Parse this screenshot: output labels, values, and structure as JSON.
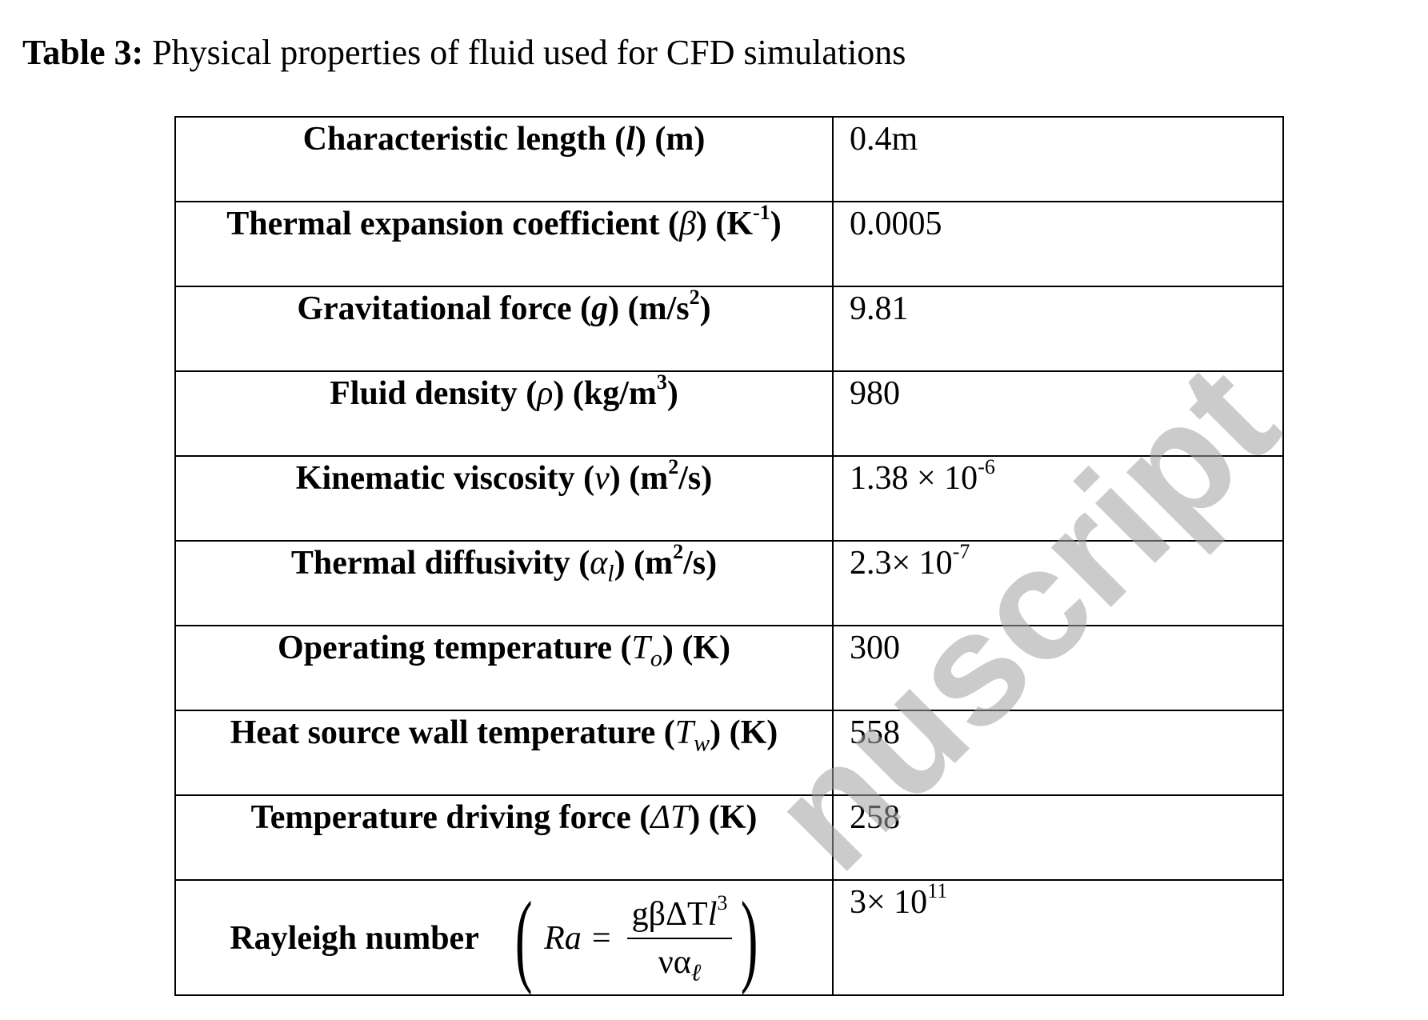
{
  "caption": {
    "label": "Table 3:",
    "text": " Physical properties of fluid used for CFD simulations"
  },
  "rows": [
    {
      "name": "Characteristic length (",
      "symbol": "l",
      "unit": ") (m)",
      "value": "0.4m"
    },
    {
      "name": "Thermal expansion coefficient (",
      "symbol": "β",
      "unit": ") (K",
      "unit_sup": "-1",
      "unit_end": ")",
      "value": "0.0005"
    },
    {
      "name": "Gravitational force (",
      "symbol": "g",
      "unit": ") (m/s",
      "unit_sup": "2",
      "unit_end": ")",
      "value": "9.81"
    },
    {
      "name": "Fluid density (",
      "symbol": "ρ",
      "unit": ") (kg/m",
      "unit_sup": "3",
      "unit_end": ")",
      "value": "980"
    },
    {
      "name": "Kinematic viscosity (",
      "symbol": "ν",
      "unit": ") (m",
      "unit_sup": "2",
      "unit_end": "/s)",
      "value_base": "1.38 × 10",
      "value_sup": "-6"
    },
    {
      "name": "Thermal diffusivity (",
      "symbol": "α",
      "symbol_sub": "l",
      "unit": ") (m",
      "unit_sup": "2",
      "unit_end": "/s)",
      "value_base": "2.3× 10",
      "value_sup": "-7"
    },
    {
      "name": "Operating temperature (",
      "symbol": "T",
      "symbol_sub": "o",
      "unit": ") (K)",
      "value": "300"
    },
    {
      "name": "Heat source wall temperature (",
      "symbol": "T",
      "symbol_sub": "w",
      "unit": ") (K)",
      "value": "558"
    },
    {
      "name": "Temperature driving force (",
      "symbol": "ΔT",
      "unit": ") (K)",
      "value": "258"
    }
  ],
  "rayleigh": {
    "label": "Rayleigh number",
    "ra": "Ra =",
    "numerator": "gβΔT",
    "numerator_var": "l",
    "numerator_sup": "3",
    "denominator": "να",
    "denominator_sub": "ℓ",
    "value_base": "3× 10",
    "value_sup": "11"
  },
  "watermark": "nuscript"
}
